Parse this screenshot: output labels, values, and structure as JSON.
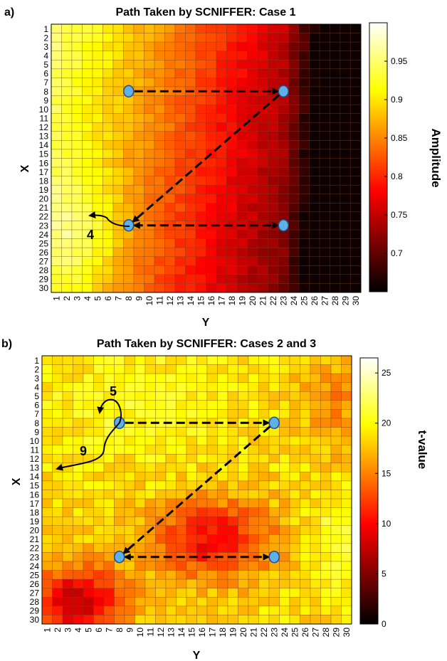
{
  "chart_data": [
    {
      "type": "heatmap",
      "panel_label": "a)",
      "title": "Path Taken by SCNIFFER: Case 1",
      "xlabel": "Y",
      "ylabel": "X",
      "x_ticks": [
        "1",
        "2",
        "3",
        "4",
        "5",
        "6",
        "7",
        "8",
        "9",
        "10",
        "11",
        "12",
        "13",
        "14",
        "15",
        "16",
        "17",
        "18",
        "19",
        "20",
        "21",
        "22",
        "23",
        "24",
        "25",
        "26",
        "27",
        "28",
        "29",
        "30"
      ],
      "y_ticks": [
        "1",
        "2",
        "3",
        "4",
        "5",
        "6",
        "7",
        "8",
        "9",
        "10",
        "11",
        "12",
        "13",
        "14",
        "15",
        "16",
        "17",
        "18",
        "19",
        "20",
        "21",
        "22",
        "23",
        "24",
        "25",
        "26",
        "27",
        "28",
        "29",
        "30"
      ],
      "colorbar": {
        "label": "Amplitude",
        "colormap": "hot",
        "range": [
          0.65,
          1.0
        ],
        "ticks": [
          "0.7",
          "0.75",
          "0.8",
          "0.85",
          "0.9",
          "0.95"
        ],
        "tick_values": [
          0.7,
          0.75,
          0.8,
          0.85,
          0.9,
          0.95
        ]
      },
      "path_points": [
        {
          "x": 8,
          "y": 8
        },
        {
          "x": 8,
          "y": 23
        },
        {
          "x": 23,
          "y": 8
        },
        {
          "x": 23,
          "y": 23
        }
      ],
      "path_segments": [
        {
          "from": [
            8,
            8
          ],
          "to": [
            8,
            23
          ],
          "arrows": "end"
        },
        {
          "from": [
            8,
            23
          ],
          "to": [
            23,
            8
          ],
          "arrows": "end"
        },
        {
          "from": [
            23,
            8
          ],
          "to": [
            23,
            23
          ],
          "arrows": "both"
        }
      ],
      "annotations": [
        {
          "text": "4",
          "at": [
            23,
            8
          ]
        }
      ]
    },
    {
      "type": "heatmap",
      "panel_label": "b)",
      "title": "Path Taken by SCNIFFER: Cases 2  and 3",
      "xlabel": "Y",
      "ylabel": "X",
      "x_ticks": [
        "1",
        "2",
        "3",
        "4",
        "5",
        "6",
        "7",
        "8",
        "9",
        "10",
        "11",
        "12",
        "13",
        "14",
        "15",
        "16",
        "17",
        "18",
        "19",
        "20",
        "21",
        "22",
        "23",
        "24",
        "25",
        "26",
        "27",
        "28",
        "29",
        "30"
      ],
      "y_ticks": [
        "1",
        "2",
        "3",
        "4",
        "5",
        "6",
        "7",
        "8",
        "9",
        "10",
        "11",
        "12",
        "13",
        "14",
        "15",
        "16",
        "17",
        "18",
        "19",
        "20",
        "21",
        "22",
        "23",
        "24",
        "25",
        "26",
        "27",
        "28",
        "29",
        "30"
      ],
      "colorbar": {
        "label": "t-value",
        "colormap": "hot",
        "range": [
          0,
          26.5
        ],
        "ticks": [
          "0",
          "5",
          "10",
          "15",
          "20",
          "25"
        ],
        "tick_values": [
          0,
          5,
          10,
          15,
          20,
          25
        ]
      },
      "path_points": [
        {
          "x": 8,
          "y": 8
        },
        {
          "x": 8,
          "y": 23
        },
        {
          "x": 23,
          "y": 8
        },
        {
          "x": 23,
          "y": 23
        }
      ],
      "path_segments": [
        {
          "from": [
            8,
            8
          ],
          "to": [
            8,
            23
          ],
          "arrows": "end"
        },
        {
          "from": [
            8,
            23
          ],
          "to": [
            23,
            8
          ],
          "arrows": "end"
        },
        {
          "from": [
            23,
            8
          ],
          "to": [
            23,
            23
          ],
          "arrows": "both"
        }
      ],
      "annotations": [
        {
          "text": "5",
          "at": [
            8,
            8
          ]
        },
        {
          "text": "9",
          "at": [
            8,
            8
          ]
        }
      ]
    }
  ]
}
